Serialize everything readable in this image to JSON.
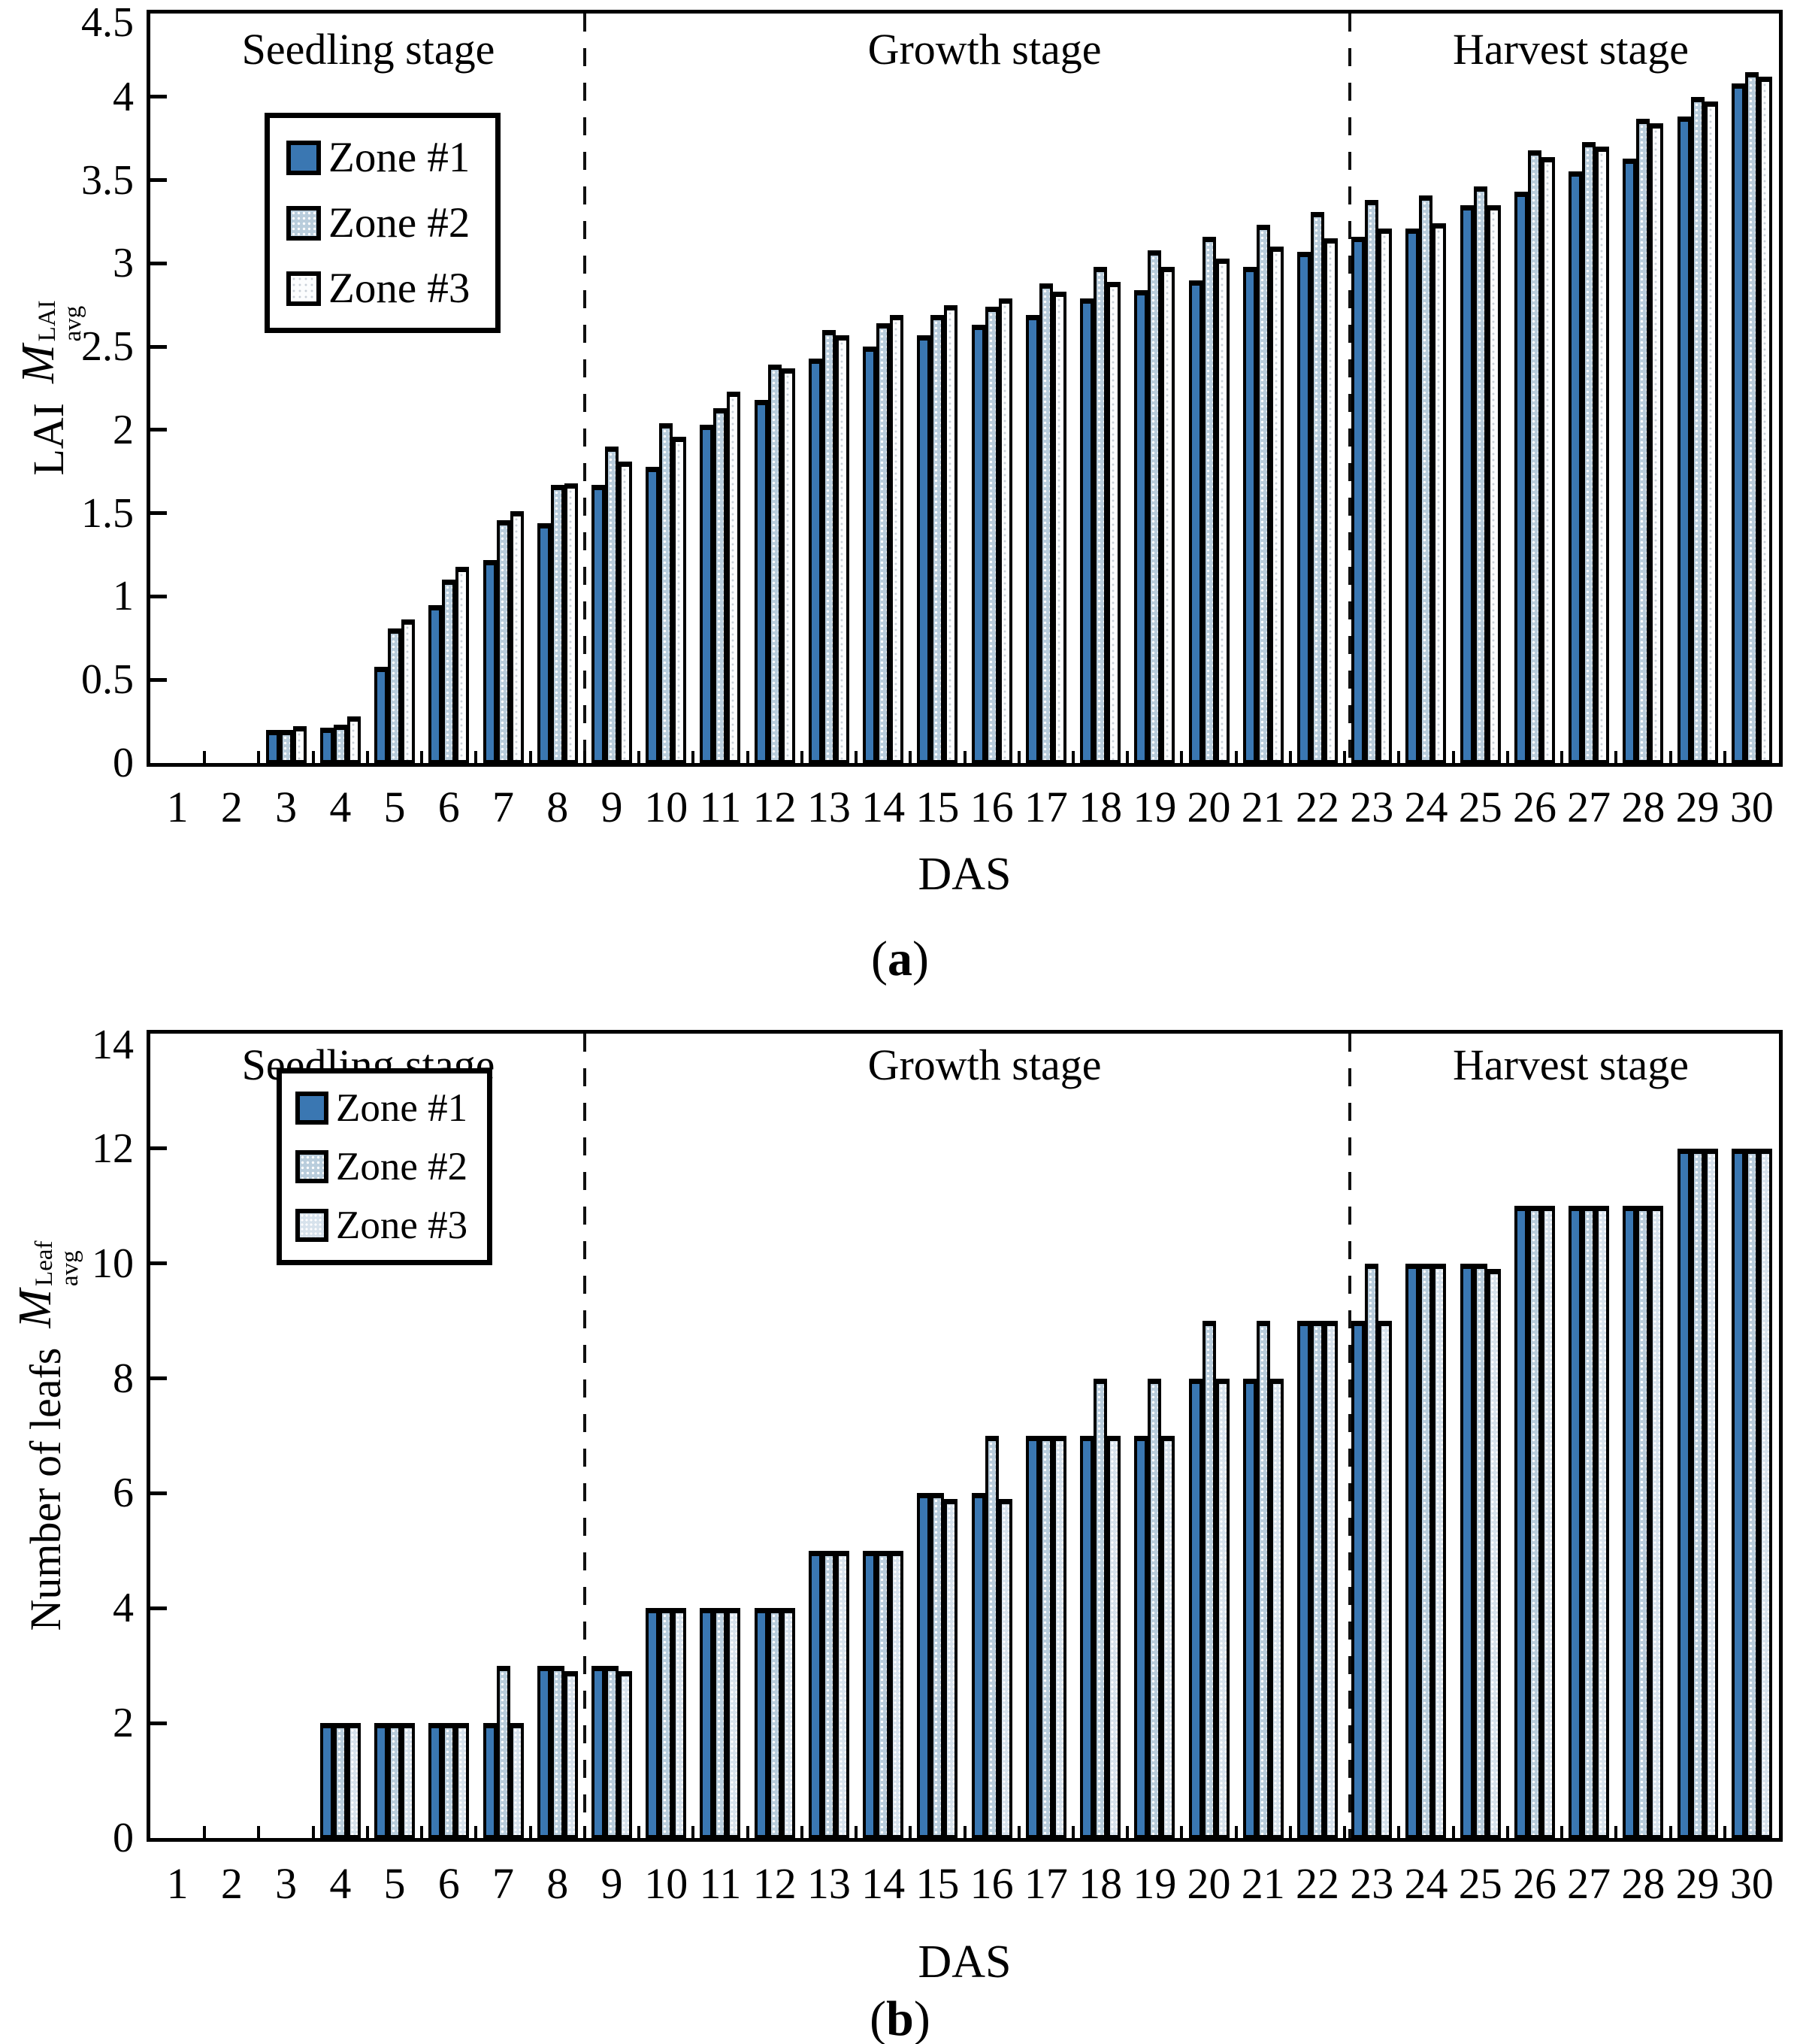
{
  "page": {
    "background": "#ffffff"
  },
  "legend": {
    "items": [
      "Zone #1",
      "Zone #2",
      "Zone #3"
    ]
  },
  "stages": [
    "Seedling stage",
    "Growth stage",
    "Harvest stage"
  ],
  "colors": {
    "zone1_fill": "#3A77B2",
    "zone2_fill": "#B9CDDC",
    "zone3_fill_panel_a": "#FCFDFE",
    "zone3_fill_panel_b": "#D7E2EC",
    "outline": "#000000"
  },
  "panel_a": {
    "caption_open": "(",
    "caption_letter": "a",
    "caption_close": ")",
    "x_label": "DAS",
    "y_label": {
      "prefix": "LAI",
      "symbol": "M",
      "sup": "LAI",
      "sub": "avg"
    }
  },
  "panel_b": {
    "caption_open": "(",
    "caption_letter": "b",
    "caption_close": ")",
    "x_label": "DAS",
    "y_label": {
      "prefix": "Number of leafs",
      "symbol": "M",
      "sup": "Leaf",
      "sub": "avg"
    }
  },
  "chart_data": [
    {
      "type": "bar",
      "panel": "a",
      "title": "",
      "xlabel": "DAS",
      "ylabel": "LAI M_avg^LAI",
      "ylim": [
        0,
        4.5
      ],
      "grid": false,
      "legend_position": "upper-left-inside",
      "x": [
        1,
        2,
        3,
        4,
        5,
        6,
        7,
        8,
        9,
        10,
        11,
        12,
        13,
        14,
        15,
        16,
        17,
        18,
        19,
        20,
        21,
        22,
        23,
        24,
        25,
        26,
        27,
        28,
        29,
        30
      ],
      "yticks": [
        {
          "v": 0,
          "label": "0"
        },
        {
          "v": 0.5,
          "label": "0.5"
        },
        {
          "v": 1,
          "label": "1"
        },
        {
          "v": 1.5,
          "label": "1.5"
        },
        {
          "v": 2,
          "label": "2"
        },
        {
          "v": 2.5,
          "label": "2.5"
        },
        {
          "v": 3,
          "label": "3"
        },
        {
          "v": 3.5,
          "label": "3.5"
        },
        {
          "v": 4,
          "label": "4"
        },
        {
          "v": 4.5,
          "label": "4.5"
        }
      ],
      "stage_dividers_x": [
        8.0,
        22.1
      ],
      "stage_labels": [
        "Seedling stage",
        "Growth stage",
        "Harvest stage"
      ],
      "series": [
        {
          "name": "Zone #1",
          "values": [
            0,
            0,
            0.2,
            0.21,
            0.58,
            0.95,
            1.22,
            1.44,
            1.67,
            1.78,
            2.03,
            2.18,
            2.43,
            2.5,
            2.57,
            2.63,
            2.69,
            2.79,
            2.84,
            2.9,
            2.98,
            3.07,
            3.16,
            3.21,
            3.35,
            3.43,
            3.55,
            3.63,
            3.88,
            4.08
          ]
        },
        {
          "name": "Zone #2",
          "values": [
            0,
            0,
            0.2,
            0.23,
            0.81,
            1.1,
            1.46,
            1.67,
            1.9,
            2.04,
            2.13,
            2.39,
            2.6,
            2.64,
            2.69,
            2.74,
            2.88,
            2.98,
            3.08,
            3.16,
            3.23,
            3.31,
            3.38,
            3.41,
            3.46,
            3.68,
            3.73,
            3.87,
            4.0,
            4.15
          ]
        },
        {
          "name": "Zone #3",
          "values": [
            0,
            0,
            0.22,
            0.28,
            0.86,
            1.18,
            1.51,
            1.68,
            1.81,
            1.96,
            2.23,
            2.37,
            2.57,
            2.69,
            2.75,
            2.79,
            2.83,
            2.89,
            2.98,
            3.03,
            3.1,
            3.15,
            3.21,
            3.24,
            3.35,
            3.64,
            3.7,
            3.84,
            3.97,
            4.12
          ]
        }
      ]
    },
    {
      "type": "bar",
      "panel": "b",
      "title": "",
      "xlabel": "DAS",
      "ylabel": "Number of leafs M_avg^Leaf",
      "ylim": [
        0,
        14
      ],
      "grid": false,
      "legend_position": "upper-left-inside",
      "x": [
        1,
        2,
        3,
        4,
        5,
        6,
        7,
        8,
        9,
        10,
        11,
        12,
        13,
        14,
        15,
        16,
        17,
        18,
        19,
        20,
        21,
        22,
        23,
        24,
        25,
        26,
        27,
        28,
        29,
        30
      ],
      "yticks": [
        {
          "v": 0,
          "label": "0"
        },
        {
          "v": 2,
          "label": "2"
        },
        {
          "v": 4,
          "label": "4"
        },
        {
          "v": 6,
          "label": "6"
        },
        {
          "v": 8,
          "label": "8"
        },
        {
          "v": 10,
          "label": "10"
        },
        {
          "v": 12,
          "label": "12"
        },
        {
          "v": 14,
          "label": "14"
        }
      ],
      "stage_dividers_x": [
        8.0,
        22.1
      ],
      "stage_labels": [
        "Seedling stage",
        "Growth stage",
        "Harvest stage"
      ],
      "series": [
        {
          "name": "Zone #1",
          "values": [
            0,
            0,
            0,
            2,
            2,
            2,
            2,
            3,
            3,
            4,
            4,
            4,
            5,
            5,
            6,
            6,
            7,
            7,
            7,
            8,
            8,
            9,
            9,
            10,
            10,
            11,
            11,
            11,
            12,
            12
          ]
        },
        {
          "name": "Zone #2",
          "values": [
            0,
            0,
            0,
            2,
            2,
            2,
            3,
            3,
            3,
            4,
            4,
            4,
            5,
            5,
            6,
            7,
            7,
            8,
            8,
            9,
            9,
            9,
            10,
            10,
            10,
            11,
            11,
            11,
            12,
            12
          ]
        },
        {
          "name": "Zone #3",
          "values": [
            0,
            0,
            0,
            2,
            2,
            2,
            2,
            2.9,
            2.9,
            4,
            4,
            4,
            5,
            5,
            5.9,
            5.9,
            7,
            7,
            7,
            8,
            8,
            9,
            9,
            10,
            9.9,
            11,
            11,
            11,
            12,
            12
          ]
        }
      ]
    }
  ]
}
